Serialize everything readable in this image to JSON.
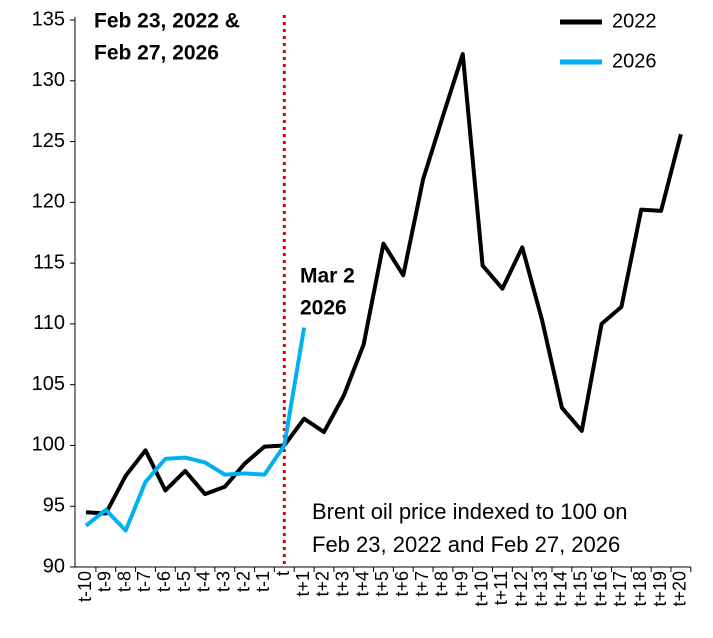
{
  "chart_data": {
    "type": "line",
    "categories": [
      "t-10",
      "t-9",
      "t-8",
      "t-7",
      "t-6",
      "t-5",
      "t-4",
      "t-3",
      "t-2",
      "t-1",
      "t",
      "t+1",
      "t+2",
      "t+3",
      "t+4",
      "t+5",
      "t+6",
      "t+7",
      "t+8",
      "t+9",
      "t+10",
      "t+11",
      "t+12",
      "t+13",
      "t+14",
      "t+15",
      "t+16",
      "t+17",
      "t+18",
      "t+19",
      "t+20"
    ],
    "series": [
      {
        "name": "2022",
        "color": "#000000",
        "values": [
          94.5,
          94.4,
          97.5,
          99.6,
          96.3,
          97.9,
          96.0,
          96.6,
          98.5,
          99.9,
          100,
          102.2,
          101.1,
          104.1,
          108.3,
          116.6,
          114.0,
          121.9,
          127.1,
          132.2,
          114.8,
          112.9,
          116.3,
          110.3,
          103.1,
          101.2,
          110.0,
          111.4,
          119.4,
          119.3,
          125.6
        ]
      },
      {
        "name": "2026",
        "color": "#00b0f0",
        "values": [
          93.4,
          94.7,
          93.0,
          97.0,
          98.9,
          99.0,
          98.6,
          97.6,
          97.7,
          97.6,
          100,
          109.7,
          null,
          null,
          null,
          null,
          null,
          null,
          null,
          null,
          null,
          null,
          null,
          null,
          null,
          null,
          null,
          null,
          null,
          null,
          null
        ]
      }
    ],
    "ylim": [
      90,
      135
    ],
    "yticks": [
      90,
      95,
      100,
      105,
      110,
      115,
      120,
      125,
      130,
      135
    ],
    "legend": "top-right",
    "vline_at": "t",
    "vline_color": "#e00000",
    "annotations": {
      "event": {
        "lines": [
          "Feb 23, 2022 &",
          "Feb 27, 2026"
        ],
        "color": "#e00000"
      },
      "latest": {
        "lines": [
          "Mar 2",
          "2026"
        ],
        "color": "#00b0f0"
      },
      "note": {
        "lines": [
          "Brent oil price indexed to 100 on",
          "Feb 23, 2022 and Feb 27, 2026"
        ]
      }
    }
  }
}
